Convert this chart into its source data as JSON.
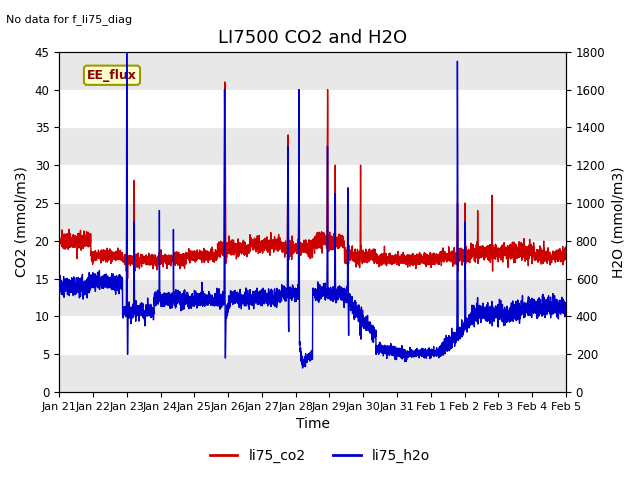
{
  "title": "LI7500 CO2 and H2O",
  "top_left_text": "No data for f_li75_diag",
  "box_label": "EE_flux",
  "xlabel": "Time",
  "ylabel_left": "CO2 (mmol/m3)",
  "ylabel_right": "H2O (mmol/m3)",
  "ylim_left": [
    0,
    45
  ],
  "ylim_right": [
    0,
    1800
  ],
  "yticks_left": [
    0,
    5,
    10,
    15,
    20,
    25,
    30,
    35,
    40,
    45
  ],
  "yticks_right": [
    0,
    200,
    400,
    600,
    800,
    1000,
    1200,
    1400,
    1600,
    1800
  ],
  "xtick_labels": [
    "Jan 21",
    "Jan 22",
    "Jan 23",
    "Jan 24",
    "Jan 25",
    "Jan 26",
    "Jan 27",
    "Jan 28",
    "Jan 29",
    "Jan 30",
    "Jan 31",
    "Feb 1",
    "Feb 2",
    "Feb 3",
    "Feb 4",
    "Feb 5"
  ],
  "co2_color": "#cc0000",
  "h2o_color": "#0000cc",
  "fig_bg_color": "#ffffff",
  "plot_bg_color": "#ffffff",
  "band_color": "#e8e8e8",
  "legend_label_co2": "li75_co2",
  "legend_label_h2o": "li75_h2o",
  "title_fontsize": 13,
  "axis_label_fontsize": 10,
  "tick_fontsize": 8.5,
  "box_text_color": "#8B0000",
  "box_face_color": "#ffffcc",
  "box_edge_color": "#999900"
}
